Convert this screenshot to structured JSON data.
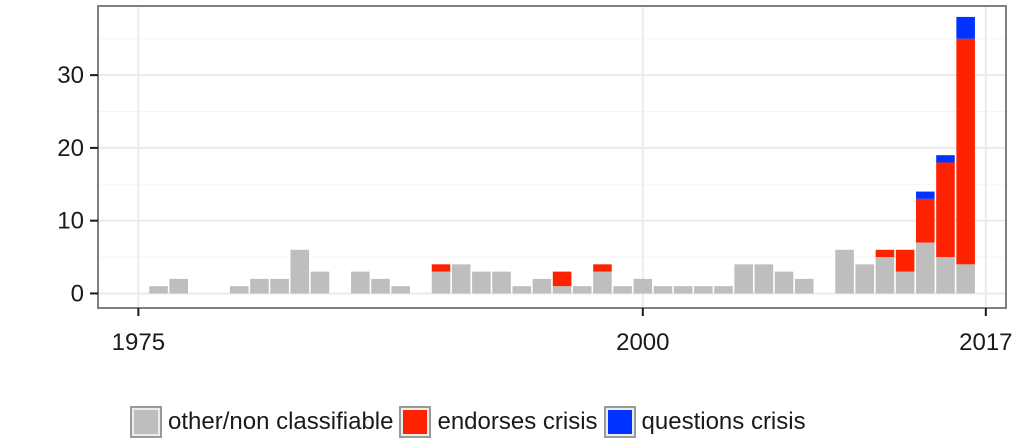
{
  "chart_data": {
    "type": "bar",
    "stacked": true,
    "x_ticks": [
      1975,
      2000,
      2017
    ],
    "y_ticks": [
      0,
      10,
      20,
      30
    ],
    "xlim": [
      1973,
      2018
    ],
    "ylim": [
      -2,
      39.5
    ],
    "grid": true,
    "legend_position": "bottom",
    "colors": {
      "other/non classifiable": "#bebebe",
      "endorses crisis": "#ff2200",
      "questions crisis": "#0033ff",
      "grid": "#ebebeb",
      "panel_border": "#7f7f7f"
    },
    "x": [
      1976,
      1977,
      1978,
      1979,
      1980,
      1981,
      1982,
      1983,
      1984,
      1985,
      1986,
      1987,
      1988,
      1989,
      1990,
      1991,
      1992,
      1993,
      1994,
      1995,
      1996,
      1997,
      1998,
      1999,
      2000,
      2001,
      2002,
      2003,
      2004,
      2005,
      2006,
      2007,
      2008,
      2009,
      2010,
      2011,
      2012,
      2013,
      2014,
      2015,
      2016
    ],
    "series": [
      {
        "name": "other/non classifiable",
        "values": [
          1,
          2,
          0,
          0,
          1,
          2,
          2,
          6,
          3,
          0,
          3,
          2,
          1,
          0,
          3,
          4,
          3,
          3,
          1,
          2,
          1,
          1,
          3,
          1,
          2,
          1,
          1,
          1,
          1,
          4,
          4,
          3,
          2,
          0,
          6,
          4,
          5,
          3,
          7,
          5,
          4
        ]
      },
      {
        "name": "endorses crisis",
        "values": [
          0,
          0,
          0,
          0,
          0,
          0,
          0,
          0,
          0,
          0,
          0,
          0,
          0,
          0,
          1,
          0,
          0,
          0,
          0,
          0,
          2,
          0,
          1,
          0,
          0,
          0,
          0,
          0,
          0,
          0,
          0,
          0,
          0,
          0,
          0,
          0,
          1,
          3,
          6,
          13,
          31
        ]
      },
      {
        "name": "questions crisis",
        "values": [
          0,
          0,
          0,
          0,
          0,
          0,
          0,
          0,
          0,
          0,
          0,
          0,
          0,
          0,
          0,
          0,
          0,
          0,
          0,
          0,
          0,
          0,
          0,
          0,
          0,
          0,
          0,
          0,
          0,
          0,
          0,
          0,
          0,
          0,
          0,
          0,
          0,
          0,
          1,
          1,
          3
        ]
      }
    ]
  }
}
